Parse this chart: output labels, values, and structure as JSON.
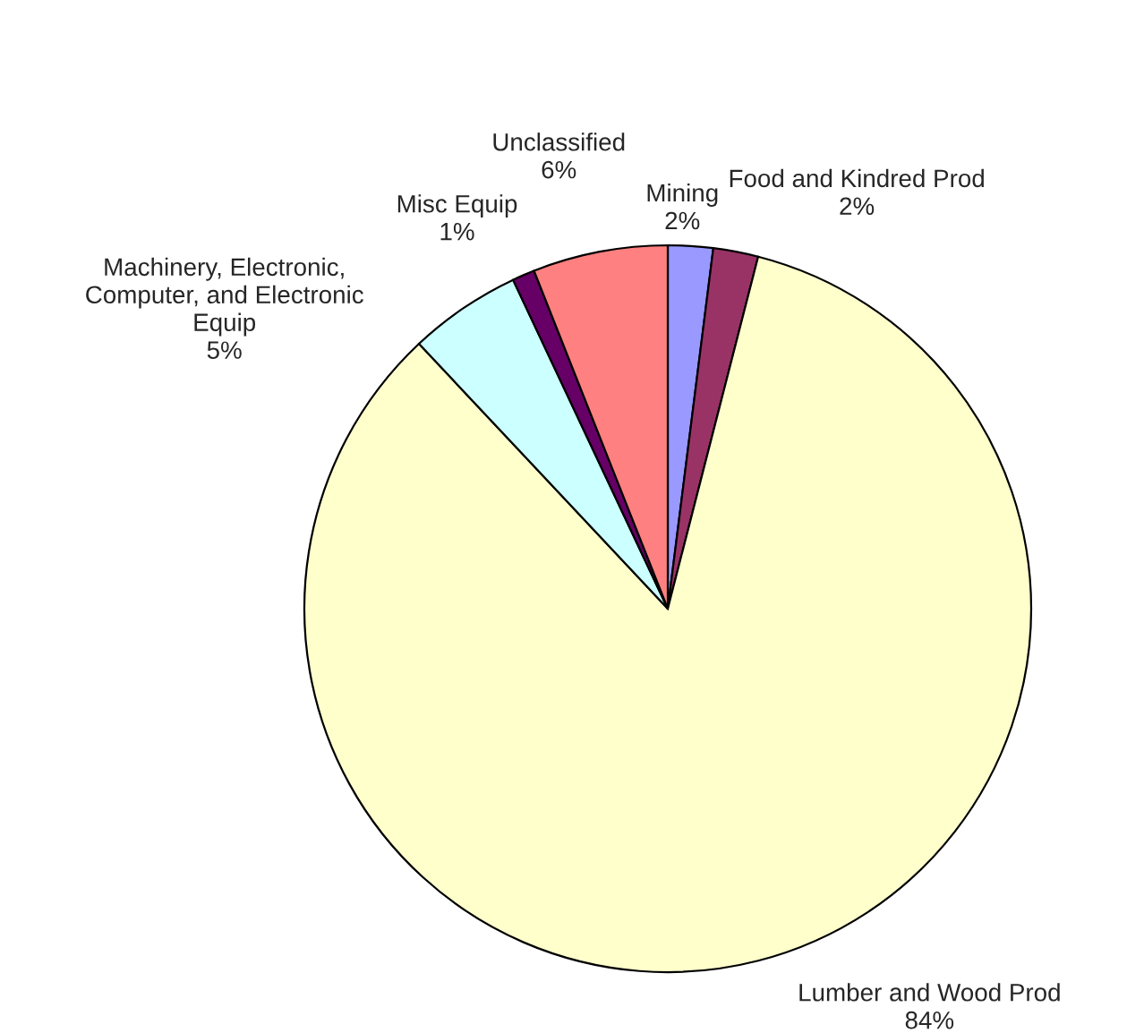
{
  "chart_data": {
    "type": "pie",
    "categories": [
      "Mining",
      "Food and Kindred Prod",
      "Lumber and Wood Prod",
      "Machinery, Electronic,\nComputer, and Electronic\nEquip",
      "Misc Equip",
      "Unclassified"
    ],
    "values": [
      2,
      2,
      84,
      5,
      1,
      6
    ],
    "value_labels": [
      "2%",
      "2%",
      "84%",
      "5%",
      "1%",
      "6%"
    ],
    "colors": [
      "#9999ff",
      "#993366",
      "#ffffcc",
      "#ccffff",
      "#660066",
      "#ff8080"
    ],
    "legend": false
  }
}
